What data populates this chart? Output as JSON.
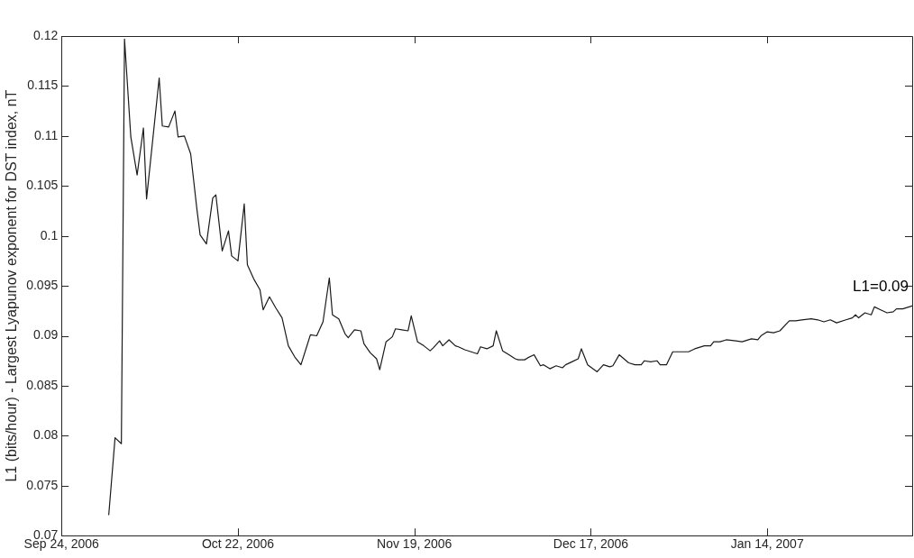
{
  "chart_data": {
    "type": "line",
    "ylabel": "L1 (bits/hour) - Largest Lyapunov exponent for DST index, nT",
    "annotations": [
      "L1=0.09"
    ],
    "xlim": [
      "2006-09-24",
      "2007-02-06"
    ],
    "xticks": [
      {
        "value": "2006-09-24",
        "label": "Sep 24, 2006"
      },
      {
        "value": "2006-10-22",
        "label": "Oct 22, 2006"
      },
      {
        "value": "2006-11-19",
        "label": "Nov 19, 2006"
      },
      {
        "value": "2006-12-17",
        "label": "Dec 17, 2006"
      },
      {
        "value": "2007-01-14",
        "label": "Jan 14, 2007"
      }
    ],
    "ylim": [
      0.07,
      0.12
    ],
    "yticks": [
      0.07,
      0.075,
      0.08,
      0.085,
      0.09,
      0.095,
      0.1,
      0.105,
      0.11,
      0.115,
      0.12
    ],
    "grid": false,
    "legend": false,
    "marker": "none",
    "line_style": "solid",
    "x": [
      "2006-10-01T12:00",
      "2006-10-02T12:00",
      "2006-10-03T12:00",
      "2006-10-04",
      "2006-10-05",
      "2006-10-06",
      "2006-10-07",
      "2006-10-07T12:00",
      "2006-10-09T12:00",
      "2006-10-10",
      "2006-10-11",
      "2006-10-12",
      "2006-10-12T12:00",
      "2006-10-13T12:00",
      "2006-10-14T12:00",
      "2006-10-15T12:00",
      "2006-10-16",
      "2006-10-17",
      "2006-10-18",
      "2006-10-18T12:00",
      "2006-10-19T12:00",
      "2006-10-20T12:00",
      "2006-10-21",
      "2006-10-22",
      "2006-10-23",
      "2006-10-23T12:00",
      "2006-10-24T12:00",
      "2006-10-25T12:00",
      "2006-10-26",
      "2006-10-27",
      "2006-10-28",
      "2006-10-29",
      "2006-10-30",
      "2006-10-31",
      "2006-11-01",
      "2006-11-02",
      "2006-11-02T12:00",
      "2006-11-03T12:00",
      "2006-11-04T12:00",
      "2006-11-05T12:00",
      "2006-11-06",
      "2006-11-07",
      "2006-11-08",
      "2006-11-08T12:00",
      "2006-11-09T12:00",
      "2006-11-10T12:00",
      "2006-11-11",
      "2006-11-12",
      "2006-11-13",
      "2006-11-13T12:00",
      "2006-11-14T12:00",
      "2006-11-15T12:00",
      "2006-11-16",
      "2006-11-17",
      "2006-11-18",
      "2006-11-18T12:00",
      "2006-11-19T12:00",
      "2006-11-20T12:00",
      "2006-11-21T12:00",
      "2006-11-22",
      "2006-11-23",
      "2006-11-23T12:00",
      "2006-11-24T12:00",
      "2006-11-25T12:00",
      "2006-11-26",
      "2006-11-27",
      "2006-11-28",
      "2006-11-29",
      "2006-11-29T12:00",
      "2006-11-30T12:00",
      "2006-12-01T12:00",
      "2006-12-02",
      "2006-12-03",
      "2006-12-04",
      "2006-12-05",
      "2006-12-05T12:00",
      "2006-12-06T12:00",
      "2006-12-07",
      "2006-12-08",
      "2006-12-09",
      "2006-12-09T12:00",
      "2006-12-10T12:00",
      "2006-12-11T12:00",
      "2006-12-12T12:00",
      "2006-12-13",
      "2006-12-14",
      "2006-12-15",
      "2006-12-15T12:00",
      "2006-12-16T12:00",
      "2006-12-18",
      "2006-12-19",
      "2006-12-20",
      "2006-12-20T12:00",
      "2006-12-21T12:00",
      "2006-12-23",
      "2006-12-24",
      "2006-12-25",
      "2006-12-25T12:00",
      "2006-12-26T12:00",
      "2006-12-27T12:00",
      "2006-12-28",
      "2006-12-29",
      "2006-12-30",
      "2006-12-31T12:00",
      "2007-01-01T12:00",
      "2007-01-02T12:00",
      "2007-01-04",
      "2007-01-05",
      "2007-01-05T12:00",
      "2007-01-06T12:00",
      "2007-01-07T12:00",
      "2007-01-09",
      "2007-01-10",
      "2007-01-11T12:00",
      "2007-01-12T12:00",
      "2007-01-13",
      "2007-01-14",
      "2007-01-15",
      "2007-01-16",
      "2007-01-17T12:00",
      "2007-01-18T12:00",
      "2007-01-19T12:00",
      "2007-01-21",
      "2007-01-22",
      "2007-01-23",
      "2007-01-24",
      "2007-01-25",
      "2007-01-26T12:00",
      "2007-01-27T12:00",
      "2007-01-28",
      "2007-01-28T12:00",
      "2007-01-29T12:00",
      "2007-01-30T12:00",
      "2007-01-31",
      "2007-02-01",
      "2007-02-02",
      "2007-02-03",
      "2007-02-03T12:00",
      "2007-02-04T12:00",
      "2007-02-06"
    ],
    "series": [
      {
        "color": "#1a1a1a",
        "values": [
          0.0721,
          0.0798,
          0.0792,
          0.1197,
          0.1099,
          0.1061,
          0.1108,
          0.1037,
          0.1158,
          0.111,
          0.1109,
          0.1125,
          0.1099,
          0.11,
          0.1082,
          0.1026,
          0.1001,
          0.0992,
          0.1038,
          0.1041,
          0.0985,
          0.1005,
          0.098,
          0.0975,
          0.1032,
          0.0971,
          0.0957,
          0.0946,
          0.0926,
          0.0939,
          0.0928,
          0.0918,
          0.089,
          0.0879,
          0.0871,
          0.0891,
          0.0901,
          0.09,
          0.0914,
          0.0958,
          0.0921,
          0.0917,
          0.0902,
          0.0898,
          0.0906,
          0.0905,
          0.0892,
          0.0883,
          0.0877,
          0.0866,
          0.0894,
          0.0899,
          0.0907,
          0.0906,
          0.0905,
          0.092,
          0.0894,
          0.089,
          0.0885,
          0.0888,
          0.0895,
          0.089,
          0.0896,
          0.089,
          0.0889,
          0.0886,
          0.0884,
          0.0882,
          0.0889,
          0.0887,
          0.089,
          0.0905,
          0.0885,
          0.0881,
          0.0877,
          0.0876,
          0.0876,
          0.0878,
          0.0881,
          0.087,
          0.0871,
          0.0867,
          0.087,
          0.0868,
          0.0871,
          0.0874,
          0.0877,
          0.0887,
          0.0871,
          0.0864,
          0.0871,
          0.0869,
          0.087,
          0.0881,
          0.0873,
          0.0871,
          0.0871,
          0.0875,
          0.0874,
          0.0875,
          0.0871,
          0.0871,
          0.0884,
          0.0884,
          0.0884,
          0.0887,
          0.089,
          0.089,
          0.0894,
          0.0894,
          0.0896,
          0.0895,
          0.0894,
          0.0897,
          0.0896,
          0.09,
          0.0904,
          0.0903,
          0.0905,
          0.0915,
          0.0915,
          0.0916,
          0.0917,
          0.0916,
          0.0914,
          0.0916,
          0.0913,
          0.0916,
          0.0918,
          0.0921,
          0.0918,
          0.0923,
          0.0921,
          0.0929,
          0.0926,
          0.0923,
          0.0924,
          0.0927,
          0.0927,
          0.093
        ]
      }
    ]
  }
}
